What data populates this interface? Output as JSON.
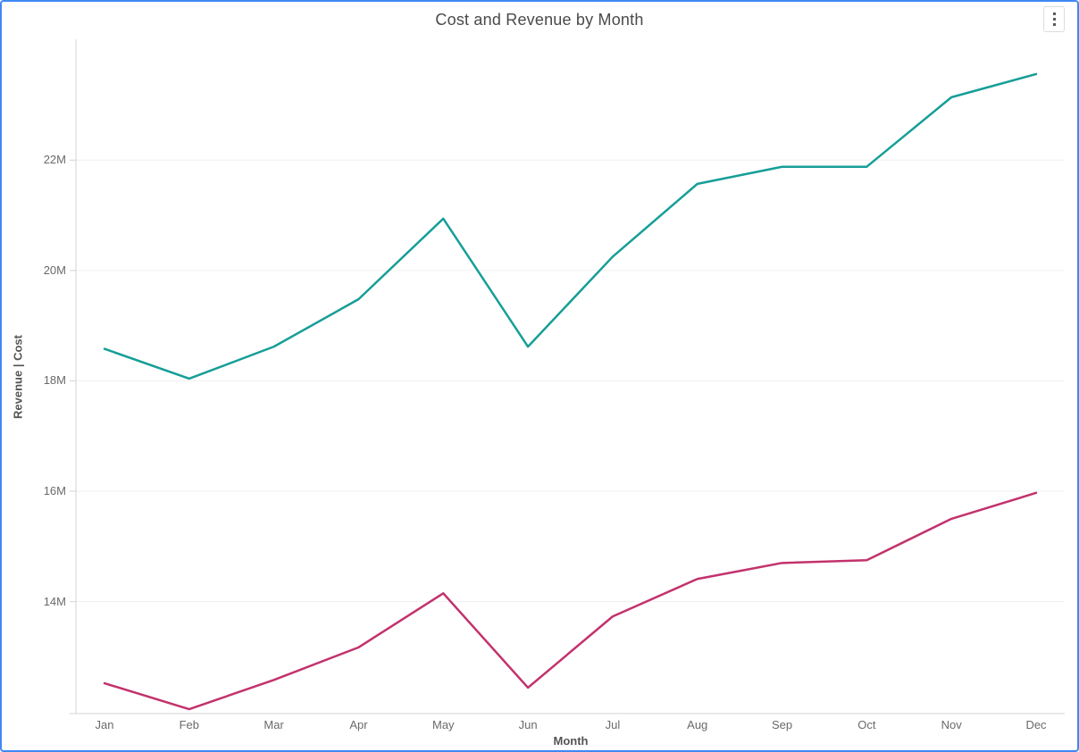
{
  "window": {
    "menu_button": "chart options"
  },
  "colors": {
    "card_border": "#3f88f5",
    "revenue_line": "#169e97",
    "cost_line": "#c2326c",
    "gridline": "#f0f0f0",
    "axis_line": "#d4d4d4",
    "title_text": "#4a4a4a",
    "tick_text": "#6a6a6a",
    "axis_title_text": "#545454"
  },
  "chart_data": {
    "type": "line",
    "title": "Cost and Revenue by Month",
    "xlabel": "Month",
    "ylabel": "Revenue  |  Cost",
    "categories": [
      "Jan",
      "Feb",
      "Mar",
      "Apr",
      "May",
      "Jun",
      "Jul",
      "Aug",
      "Sep",
      "Oct",
      "Nov",
      "Dec"
    ],
    "series": [
      {
        "name": "Revenue",
        "color": "#169e97",
        "values": [
          18.58,
          18.04,
          18.62,
          19.48,
          20.94,
          18.62,
          20.25,
          21.57,
          21.88,
          21.88,
          23.14,
          23.56
        ]
      },
      {
        "name": "Cost",
        "color": "#c2326c",
        "values": [
          12.52,
          12.05,
          12.58,
          13.17,
          14.15,
          12.44,
          13.73,
          14.41,
          14.7,
          14.75,
          15.5,
          15.97
        ]
      }
    ],
    "unit": "M",
    "ylim": [
      11.97,
      24.19
    ],
    "yticks": {
      "values": [
        22,
        20,
        18,
        16,
        14
      ],
      "labels": [
        "22M",
        "20M",
        "18M",
        "16M",
        "14M"
      ]
    },
    "grid": "horizontal-only",
    "legend": "none"
  }
}
